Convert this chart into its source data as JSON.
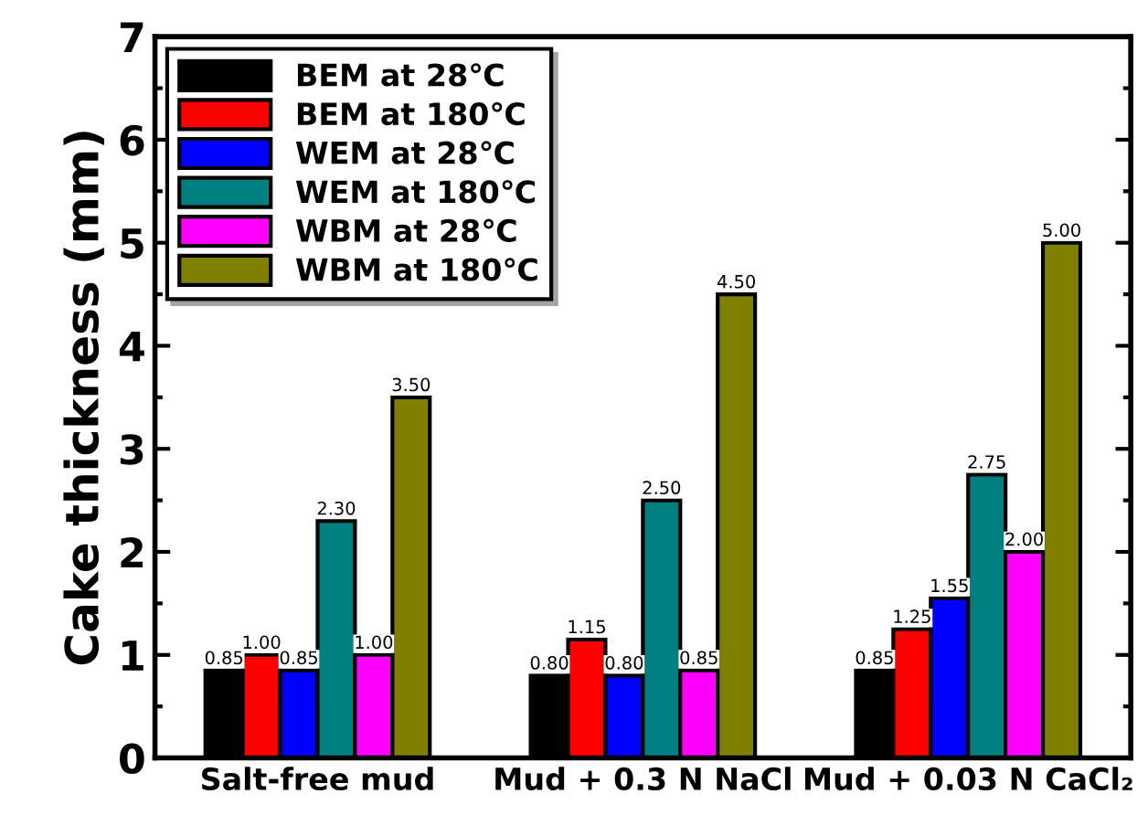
{
  "chart_data": {
    "type": "bar",
    "ylabel": "Cake thickness (mm)",
    "categories": [
      "Salt-free mud",
      "Mud + 0.3 N NaCl",
      "Mud + 0.03 N CaCl₂"
    ],
    "series": [
      {
        "name": "BEM at 28℃",
        "color": "#000000",
        "values": [
          0.85,
          0.8,
          0.85
        ],
        "value_labels": [
          "0.85",
          "0.80",
          "0.85"
        ]
      },
      {
        "name": "BEM at 180℃",
        "color": "#ff0000",
        "values": [
          1.0,
          1.15,
          1.25
        ],
        "value_labels": [
          "1.00",
          "1.15",
          "1.25"
        ]
      },
      {
        "name": "WEM at 28℃",
        "color": "#0000ff",
        "values": [
          0.85,
          0.8,
          1.55
        ],
        "value_labels": [
          "0.85",
          "0.80",
          "1.55"
        ]
      },
      {
        "name": "WEM at 180℃",
        "color": "#008080",
        "values": [
          2.3,
          2.5,
          2.75
        ],
        "value_labels": [
          "2.30",
          "2.50",
          "2.75"
        ]
      },
      {
        "name": "WBM at 28℃",
        "color": "#ff00ff",
        "values": [
          1.0,
          0.85,
          2.0
        ],
        "value_labels": [
          "1.00",
          "0.85",
          "2.00"
        ]
      },
      {
        "name": "WBM at 180℃",
        "color": "#808000",
        "values": [
          3.5,
          4.5,
          5.0
        ],
        "value_labels": [
          "3.50",
          "4.50",
          "5.00"
        ]
      }
    ],
    "ylim": [
      0,
      7
    ],
    "yticks": [
      0,
      1,
      2,
      3,
      4,
      5,
      6,
      7
    ],
    "legend": "top left",
    "grid": false
  }
}
